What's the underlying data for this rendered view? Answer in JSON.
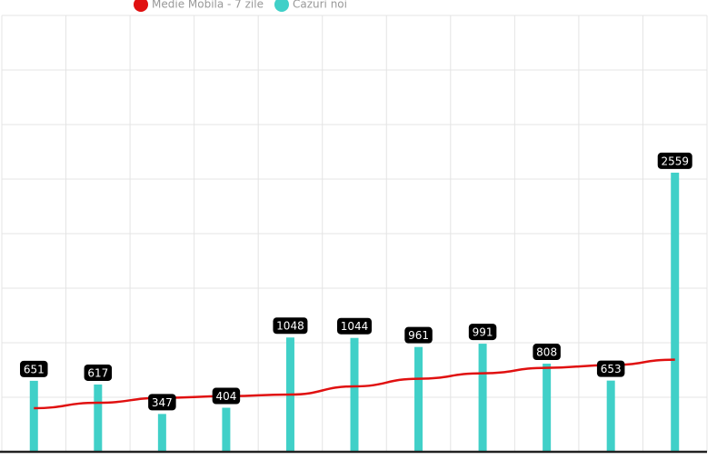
{
  "chart_data": {
    "type": "bar",
    "categories": [
      "",
      "",
      "",
      "",
      "",
      "",
      "",
      "",
      "",
      "",
      ""
    ],
    "series": [
      {
        "name": "Medie Mobila - 7 zile",
        "type": "line",
        "color": "#e01010",
        "values": [
          400,
          450,
          495,
          510,
          525,
          600,
          670,
          720,
          770,
          795,
          845
        ]
      },
      {
        "name": "Cazuri noi",
        "type": "bar",
        "color": "#40d0c8",
        "values": [
          651,
          617,
          347,
          404,
          1048,
          1044,
          961,
          991,
          808,
          653,
          2559
        ]
      }
    ],
    "ylim": [
      0,
      4000
    ],
    "yticks": [
      0,
      500,
      1000,
      1500,
      2000,
      2500,
      3000,
      3500,
      4000
    ],
    "grid": true
  }
}
